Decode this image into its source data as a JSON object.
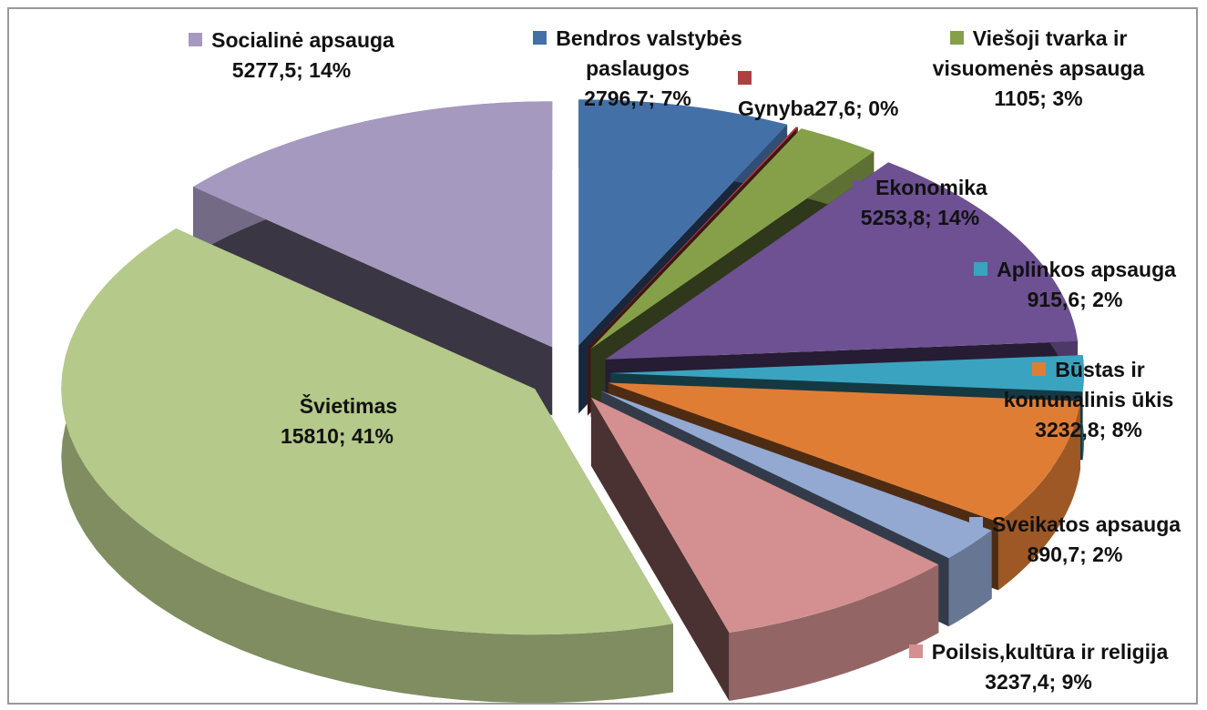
{
  "chart_data": {
    "type": "pie3d",
    "categories": [
      "Socialinė apsauga",
      "Bendros valstybės paslaugos",
      "Gynyba",
      "Viešoji tvarka ir visuomenės apsauga",
      "Ekonomika",
      "Aplinkos apsauga",
      "Būstas ir komunalinis ūkis",
      "Sveikatos apsauga",
      "Poilsis,kultūra ir religija",
      "Švietimas"
    ],
    "values": [
      5277.5,
      2796.7,
      27.6,
      1105,
      5253.8,
      915.6,
      3232.8,
      890.7,
      3237.4,
      15810
    ],
    "value_labels": [
      "5277,5; 14%",
      "2796,7; 7%",
      "27,6; 0%",
      "1105; 3%",
      "5253,8; 14%",
      "915,6; 2%",
      "3232,8; 8%",
      "890,7; 2%",
      "3237,4; 9%",
      "15810; 41%"
    ],
    "colors": [
      "#a599c0",
      "#4470a8",
      "#b04040",
      "#86a04a",
      "#6d5193",
      "#3aa3c0",
      "#e07d35",
      "#93a9d2",
      "#d49090",
      "#b5c98a"
    ]
  }
}
